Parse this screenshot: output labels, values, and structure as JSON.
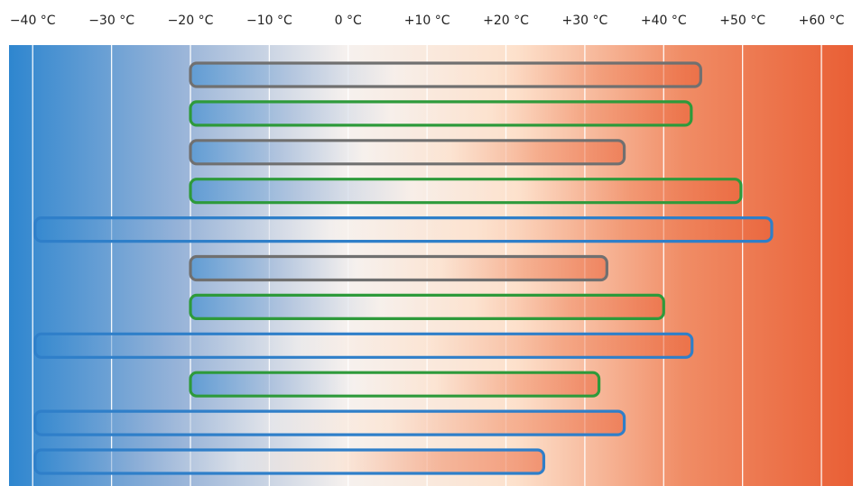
{
  "chart_data": {
    "type": "bar",
    "title": "",
    "xlabel": "",
    "ylabel": "",
    "xlim": [
      -43,
      64
    ],
    "grid": true,
    "tick_values": [
      -40,
      -30,
      -20,
      -10,
      0,
      10,
      20,
      30,
      40,
      50,
      60
    ],
    "tick_labels": [
      "−40 °C",
      "−30 °C",
      "−20 °C",
      "−10 °C",
      "0 °C",
      "+10 °C",
      "+20 °C",
      "+30 °C",
      "+40 °C",
      "+50 °C",
      "+60 °C"
    ],
    "background_gradient": [
      "#2e86cf",
      "#97b3d8",
      "#f6f1ee",
      "#fde1cc",
      "#f08c65",
      "#e95f35"
    ],
    "ranges": [
      {
        "min": -20,
        "max": 44.7,
        "color": "#707070"
      },
      {
        "min": -20,
        "max": 43.5,
        "color": "#2e9a3b"
      },
      {
        "min": -20,
        "max": 35,
        "color": "#707070"
      },
      {
        "min": -20,
        "max": 49.8,
        "color": "#2e9a3b"
      },
      {
        "min": -39.7,
        "max": 53.7,
        "color": "#2f7fc9"
      },
      {
        "min": -20,
        "max": 32.8,
        "color": "#707070"
      },
      {
        "min": -20,
        "max": 40,
        "color": "#2e9a3b"
      },
      {
        "min": -39.7,
        "max": 43.6,
        "color": "#2f7fc9"
      },
      {
        "min": -20,
        "max": 31.8,
        "color": "#2e9a3b"
      },
      {
        "min": -39.7,
        "max": 35,
        "color": "#2f7fc9"
      },
      {
        "min": -39.7,
        "max": 24.8,
        "color": "#2f7fc9"
      }
    ]
  }
}
